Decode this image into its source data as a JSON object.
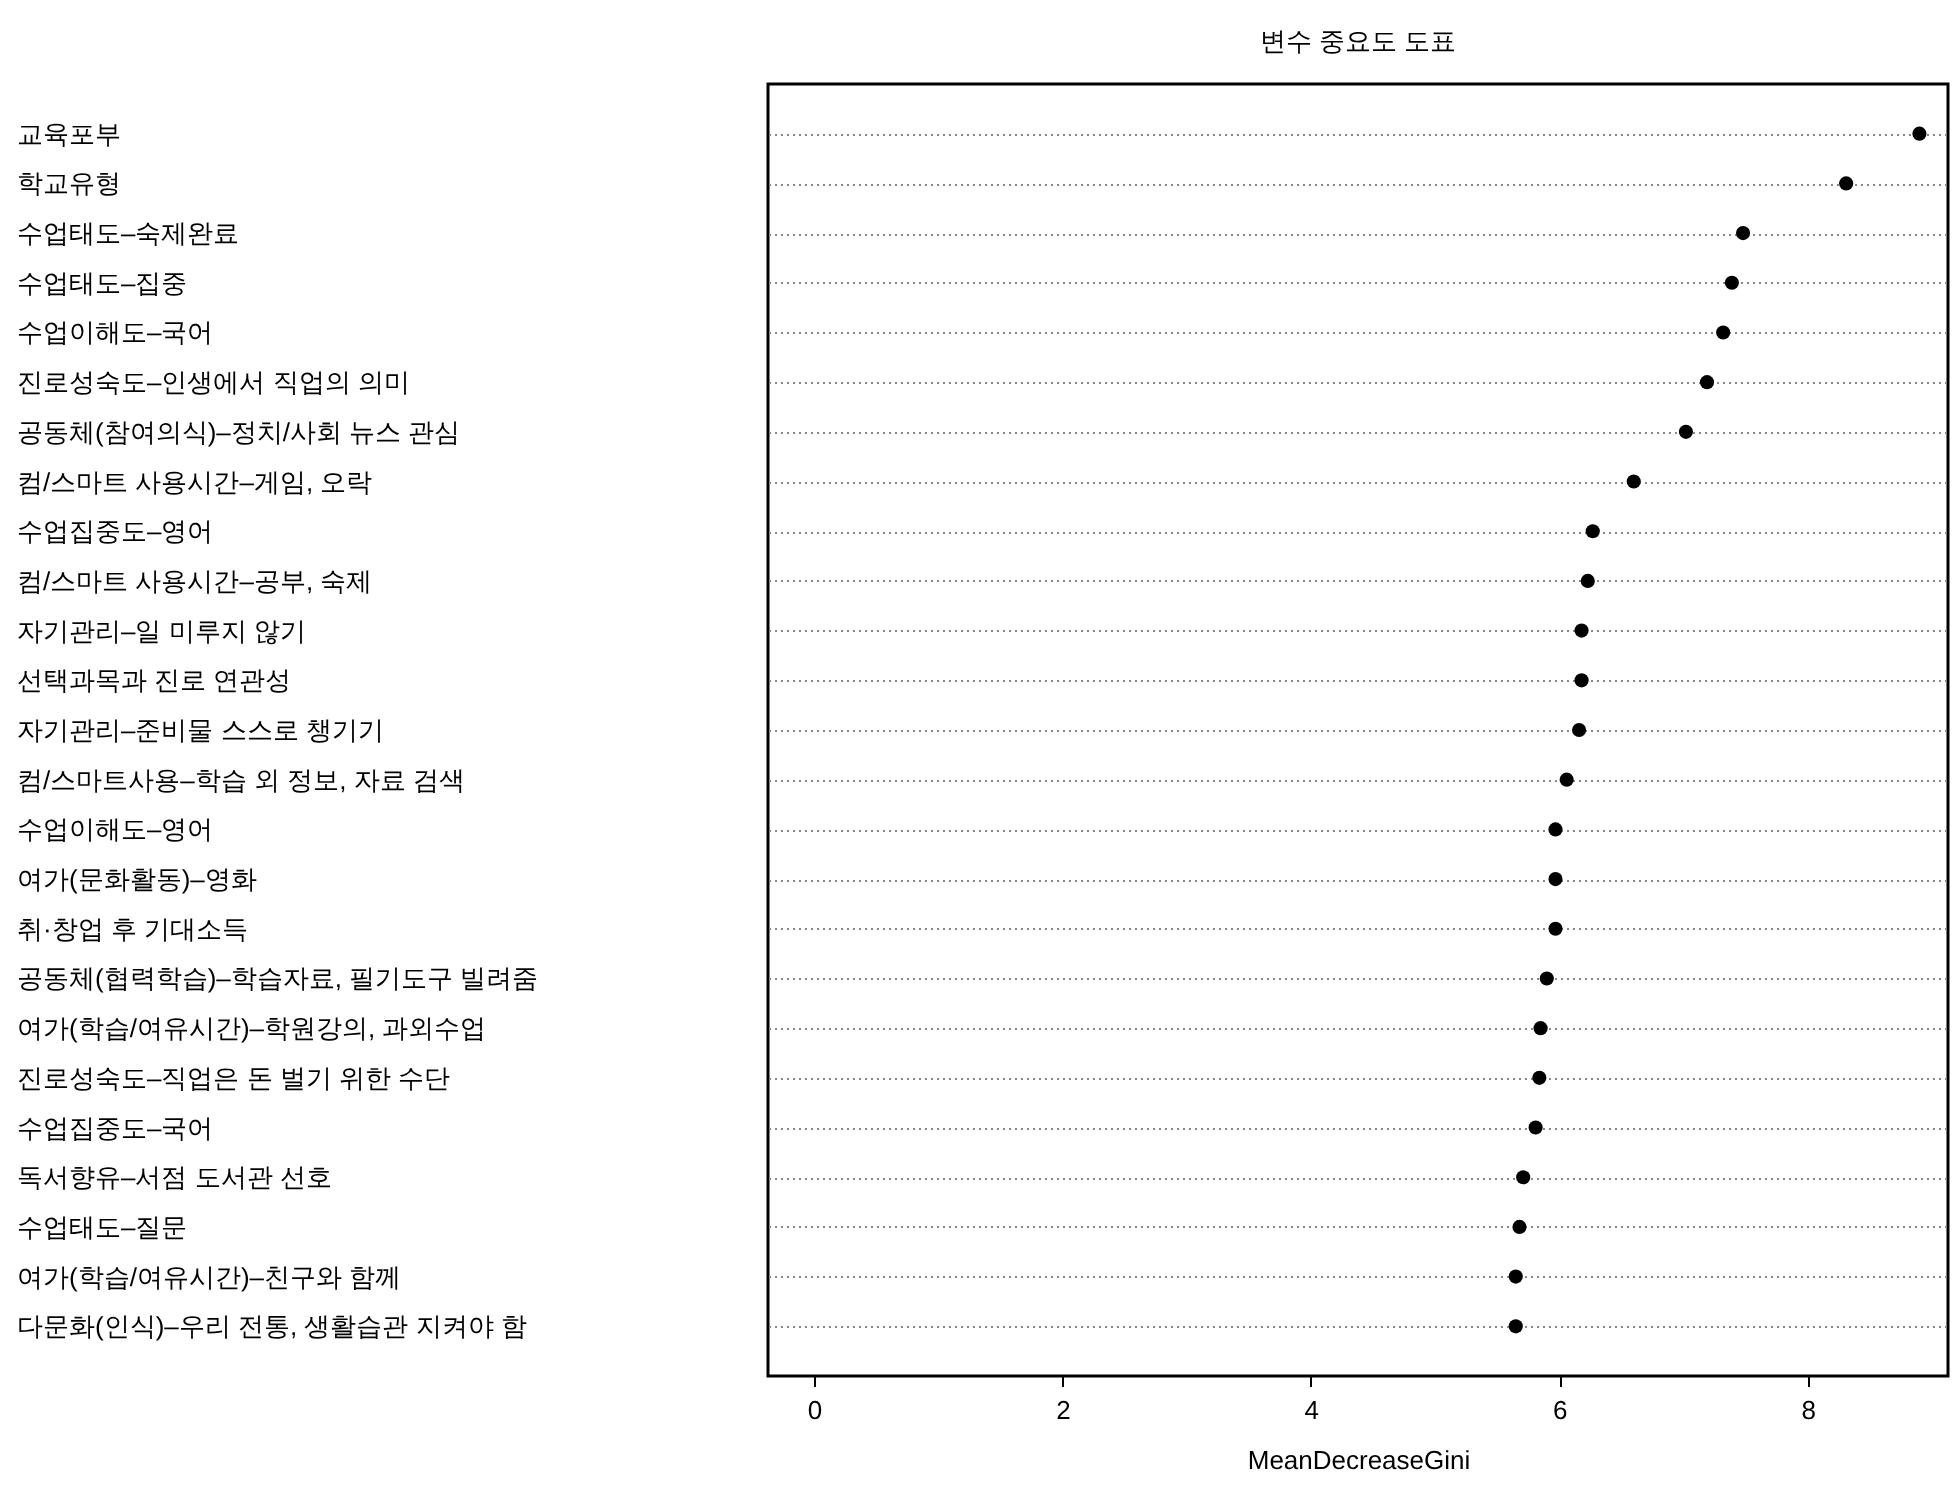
{
  "chart_data": {
    "type": "scatter",
    "title": "변수 중요도 도표",
    "xlabel": "MeanDecreaseGini",
    "categories": [
      "교육포부",
      "학교유형",
      "수업태도–숙제완료",
      "수업태도–집중",
      "수업이해도–국어",
      "진로성숙도–인생에서 직업의 의미",
      "공동체(참여의식)–정치/사회 뉴스 관심",
      "컴/스마트 사용시간–게임, 오락",
      "수업집중도–영어",
      "컴/스마트 사용시간–공부, 숙제",
      "자기관리–일 미루지 않기",
      "선택과목과 진로 연관성",
      "자기관리–준비물 스스로 챙기기",
      "컴/스마트사용–학습 외 정보, 자료 검색",
      "수업이해도–영어",
      "여가(문화활동)–영화",
      "취·창업 후 기대소득",
      "공동체(협력학습)–학습자료, 필기도구 빌려줌",
      "여가(학습/여유시간)–학원강의, 과외수업",
      "진로성숙도–직업은 돈 벌기 위한 수단",
      "수업집중도–국어",
      "독서향유–서점 도서관 선호",
      "수업태도–질문",
      "여가(학습/여유시간)–친구와 함께",
      "다문화(인식)–우리 전통, 생활습관 지켜야 함"
    ],
    "values": [
      8.9,
      8.31,
      7.48,
      7.39,
      7.32,
      7.19,
      7.02,
      6.6,
      6.27,
      6.23,
      6.18,
      6.18,
      6.16,
      6.06,
      5.97,
      5.97,
      5.97,
      5.9,
      5.85,
      5.84,
      5.81,
      5.71,
      5.68,
      5.65,
      5.65
    ],
    "color": "#000000",
    "marker": "circle",
    "grid": "y",
    "orientation": "horizontal",
    "xlim": [
      -0.37,
      9.13
    ],
    "xticks": [
      0,
      2,
      4,
      6,
      8
    ]
  }
}
